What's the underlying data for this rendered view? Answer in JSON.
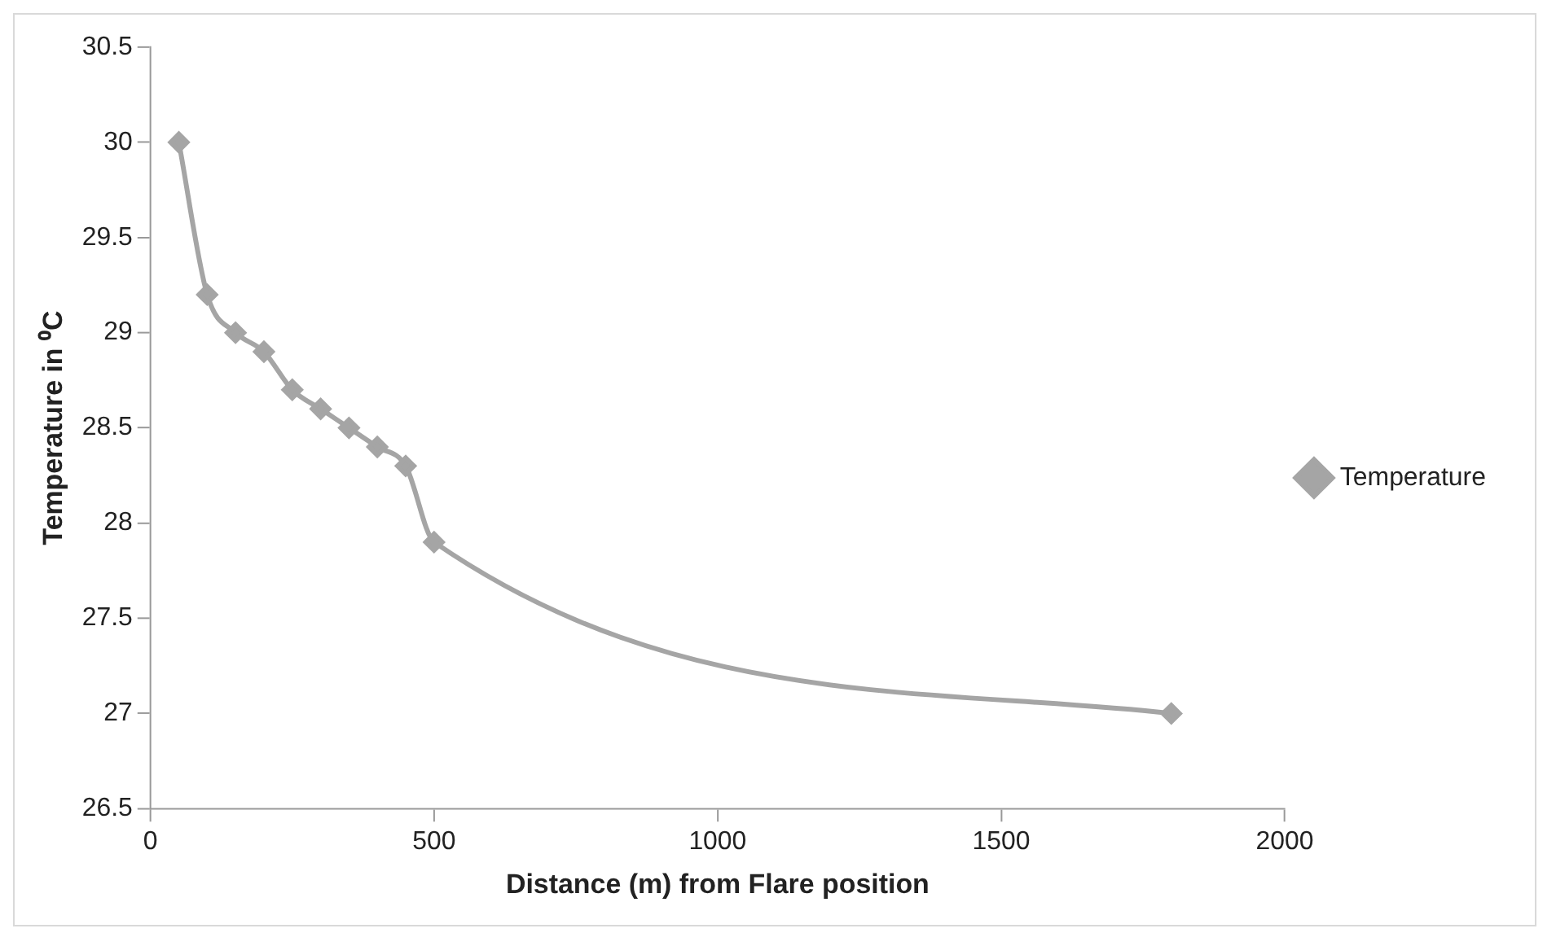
{
  "chart_data": {
    "type": "line",
    "xlabel": "Distance (m) from Flare position",
    "ylabel": "Temperature in ⁰C",
    "x": [
      50,
      100,
      150,
      200,
      250,
      300,
      350,
      400,
      450,
      500,
      1800
    ],
    "series": [
      {
        "name": "Temperature",
        "color": "#a5a5a5",
        "values": [
          30,
          29.2,
          29.0,
          28.9,
          28.7,
          28.6,
          28.5,
          28.4,
          28.3,
          27.9,
          27.0
        ]
      }
    ],
    "xlim": [
      0,
      2000
    ],
    "xticks": [
      0,
      500,
      1000,
      1500,
      2000
    ],
    "ylim": [
      26.5,
      30.5
    ],
    "yticks": [
      26.5,
      27,
      27.5,
      28,
      28.5,
      29,
      29.5,
      30,
      30.5
    ],
    "grid": false,
    "legend": "right",
    "marker": "diamond",
    "line_style": "solid"
  }
}
